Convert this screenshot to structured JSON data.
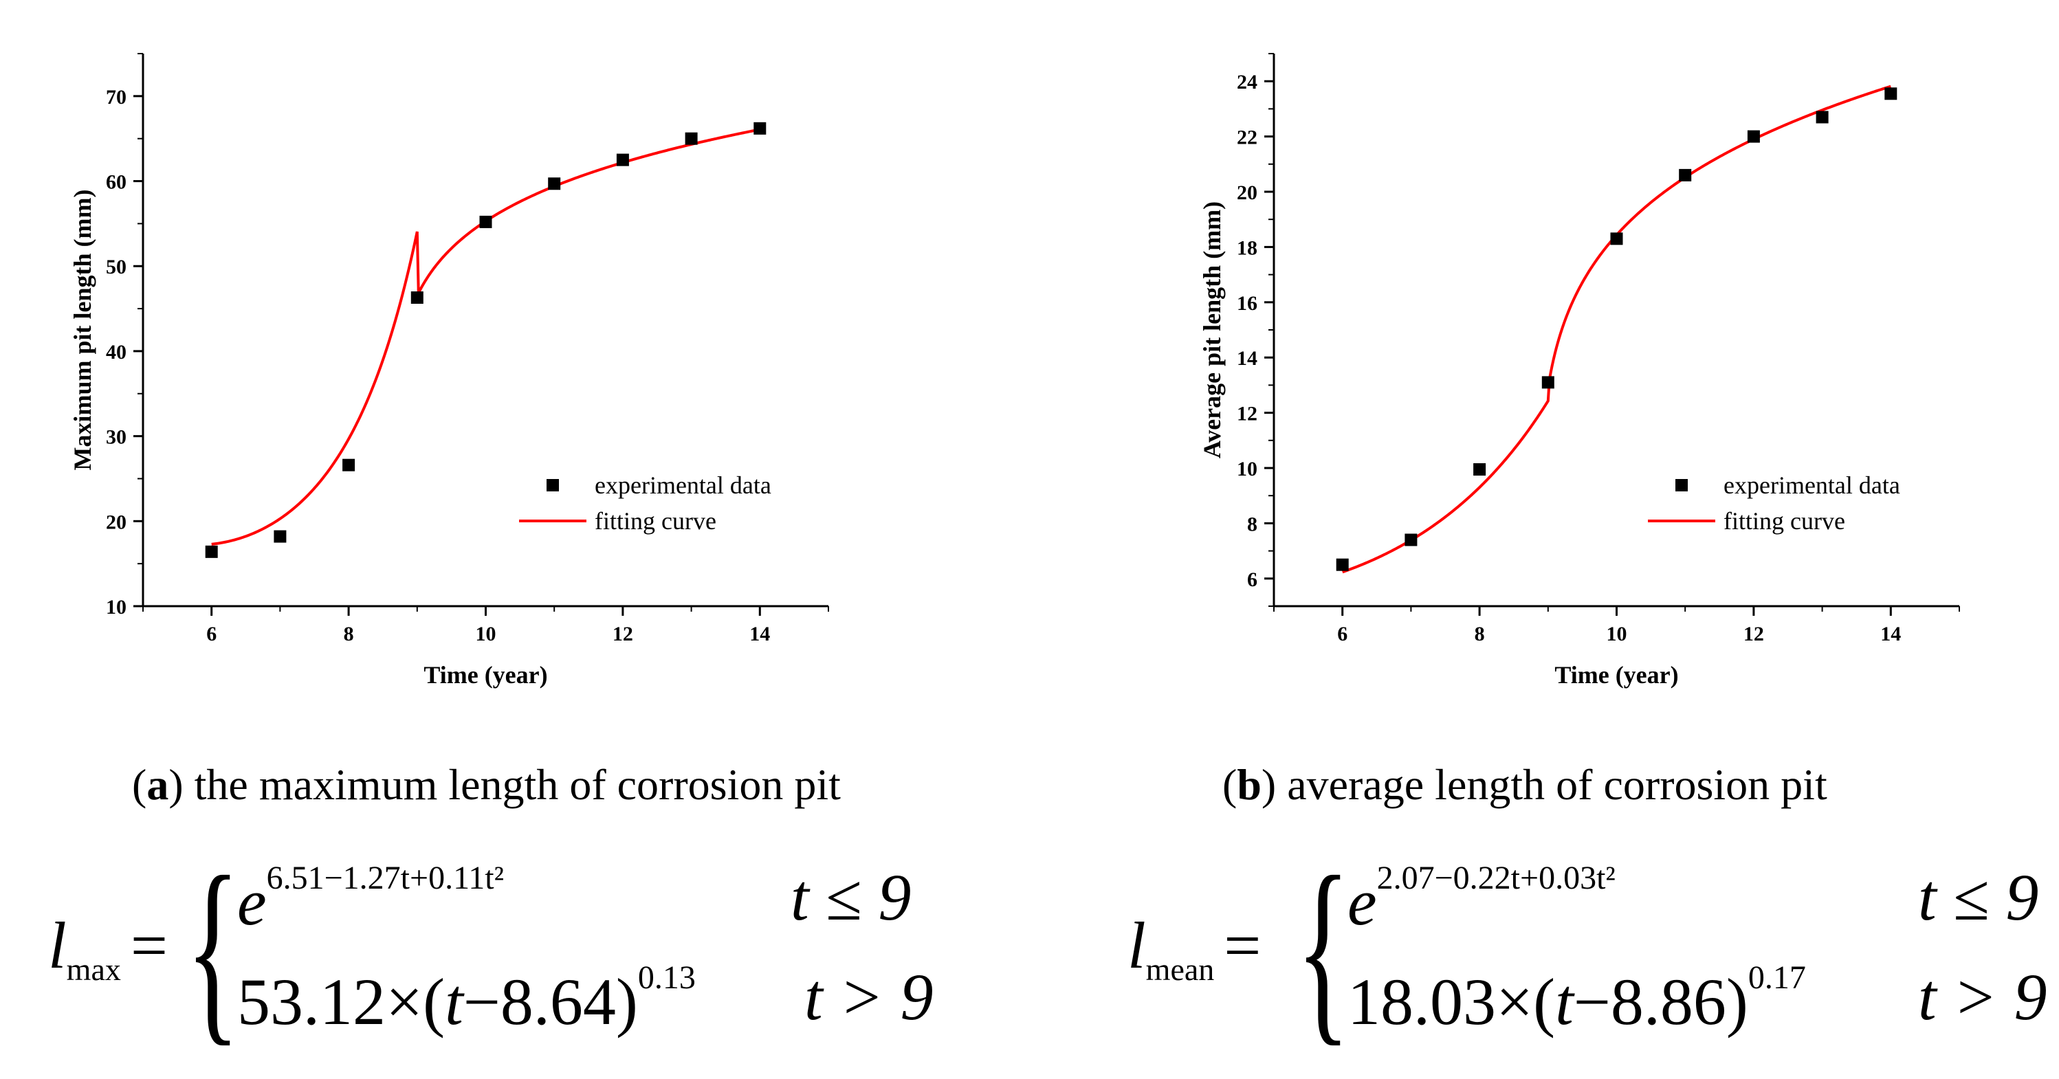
{
  "chart_data": [
    {
      "type": "scatter",
      "title": "",
      "xlabel": "Time (year)",
      "ylabel": "Maximum pit length (mm)",
      "xlim": [
        5,
        15
      ],
      "ylim": [
        10,
        75
      ],
      "xticks": [
        6,
        8,
        10,
        12,
        14
      ],
      "yticks": [
        10,
        20,
        30,
        40,
        50,
        60,
        70
      ],
      "legend_position": "center-right",
      "series": [
        {
          "name": "experimental data",
          "style": "markers",
          "color": "#000000",
          "x": [
            6,
            7,
            8,
            9,
            10,
            11,
            12,
            13,
            14
          ],
          "y": [
            16.4,
            18.2,
            26.6,
            46.3,
            55.2,
            59.7,
            62.5,
            65.0,
            66.2
          ]
        },
        {
          "name": "fitting curve",
          "style": "line",
          "color": "#ff0000",
          "piecewise": {
            "break": 9,
            "low": {
              "form": "exp_quadratic",
              "a": 6.51,
              "b": -1.27,
              "c": 0.11
            },
            "high": {
              "form": "power",
              "k": 53.12,
              "t0": 8.64,
              "p": 0.13
            }
          }
        }
      ]
    },
    {
      "type": "scatter",
      "title": "",
      "xlabel": "Time (year)",
      "ylabel": "Average pit length (mm)",
      "xlim": [
        5,
        15
      ],
      "ylim": [
        5,
        25
      ],
      "xticks": [
        6,
        8,
        10,
        12,
        14
      ],
      "yticks": [
        6,
        8,
        10,
        12,
        14,
        16,
        18,
        20,
        22,
        24
      ],
      "legend_position": "center-right",
      "series": [
        {
          "name": "experimental data",
          "style": "markers",
          "color": "#000000",
          "x": [
            6,
            7,
            8,
            9,
            10,
            11,
            12,
            13,
            14
          ],
          "y": [
            6.5,
            7.4,
            9.95,
            13.1,
            18.3,
            20.6,
            22.0,
            22.7,
            23.55
          ]
        },
        {
          "name": "fitting curve",
          "style": "line",
          "color": "#ff0000",
          "piecewise": {
            "break": 9,
            "low": {
              "form": "exp_quadratic",
              "a": 2.07,
              "b": -0.22,
              "c": 0.03
            },
            "high": {
              "form": "power",
              "k": 18.03,
              "t0": 8.86,
              "p": 0.17
            }
          }
        }
      ]
    }
  ],
  "captions": {
    "a": {
      "label": "a",
      "text": "the maximum length of corrosion pit"
    },
    "b": {
      "label": "b",
      "text": "average length of corrosion pit"
    }
  },
  "formulas": {
    "a": {
      "symbol": "l",
      "subscript": "max",
      "case1_base": "e",
      "case1_exponent": "6.51−1.27t+0.11t²",
      "case1_condition": "t ≤ 9",
      "case2_prefix": "53.12×(",
      "case2_var": "t",
      "case2_rest": "−8.64)",
      "case2_exponent": "0.13",
      "case2_condition": "t > 9"
    },
    "b": {
      "symbol": "l",
      "subscript": "mean",
      "case1_base": "e",
      "case1_exponent": "2.07−0.22t+0.03t²",
      "case1_condition": "t ≤ 9",
      "case2_prefix": "18.03×(",
      "case2_var": "t",
      "case2_rest": "−8.86)",
      "case2_exponent": "0.17",
      "case2_condition": "t > 9"
    }
  },
  "colors": {
    "fit": "#ff0000",
    "marker": "#000000",
    "axis": "#000000"
  }
}
